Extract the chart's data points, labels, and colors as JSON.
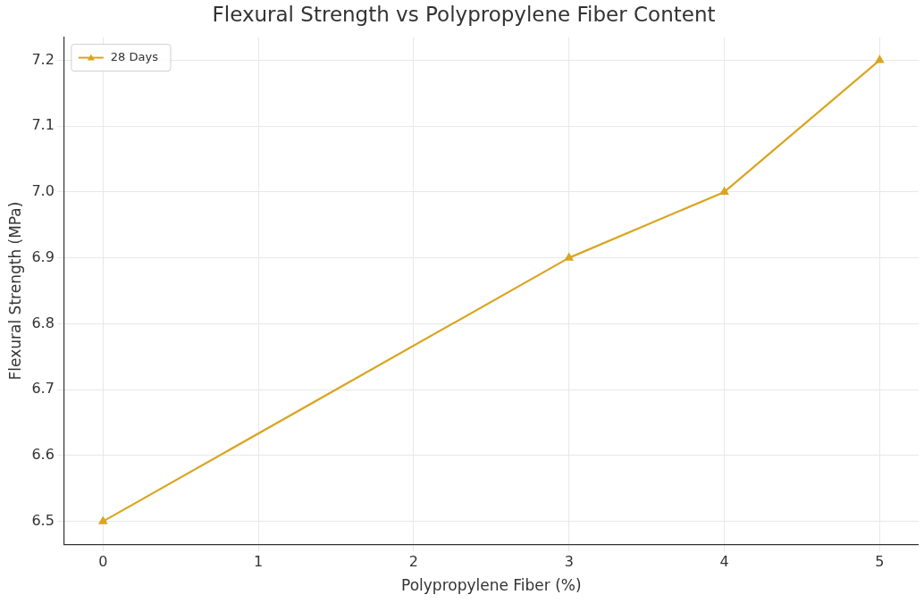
{
  "chart_data": {
    "type": "line",
    "title": "Flexural Strength vs Polypropylene Fiber Content",
    "xlabel": "Polypropylene Fiber (%)",
    "ylabel": "Flexural Strength (MPa)",
    "x": [
      0,
      3,
      4,
      5
    ],
    "series": [
      {
        "name": "28 Days",
        "color": "#daa520",
        "values": [
          6.5,
          6.9,
          7.0,
          7.2
        ]
      }
    ],
    "xlim": [
      -0.25,
      5.25
    ],
    "xticks": [
      0,
      1,
      2,
      3,
      4,
      5
    ],
    "ylim": [
      6.465,
      7.235
    ],
    "yticks": [
      {
        "value": 6.5,
        "label": "6.5"
      },
      {
        "value": 6.6,
        "label": "6.6"
      },
      {
        "value": 6.7,
        "label": "6.7"
      },
      {
        "value": 6.8,
        "label": "6.8"
      },
      {
        "value": 6.9,
        "label": "6.9"
      },
      {
        "value": 7.0,
        "label": "7.0"
      },
      {
        "value": 7.1,
        "label": "7.1"
      },
      {
        "value": 7.2,
        "label": "7.2"
      }
    ],
    "grid": true,
    "legend": "top left",
    "marker": "triangle",
    "line_style": "solid"
  }
}
